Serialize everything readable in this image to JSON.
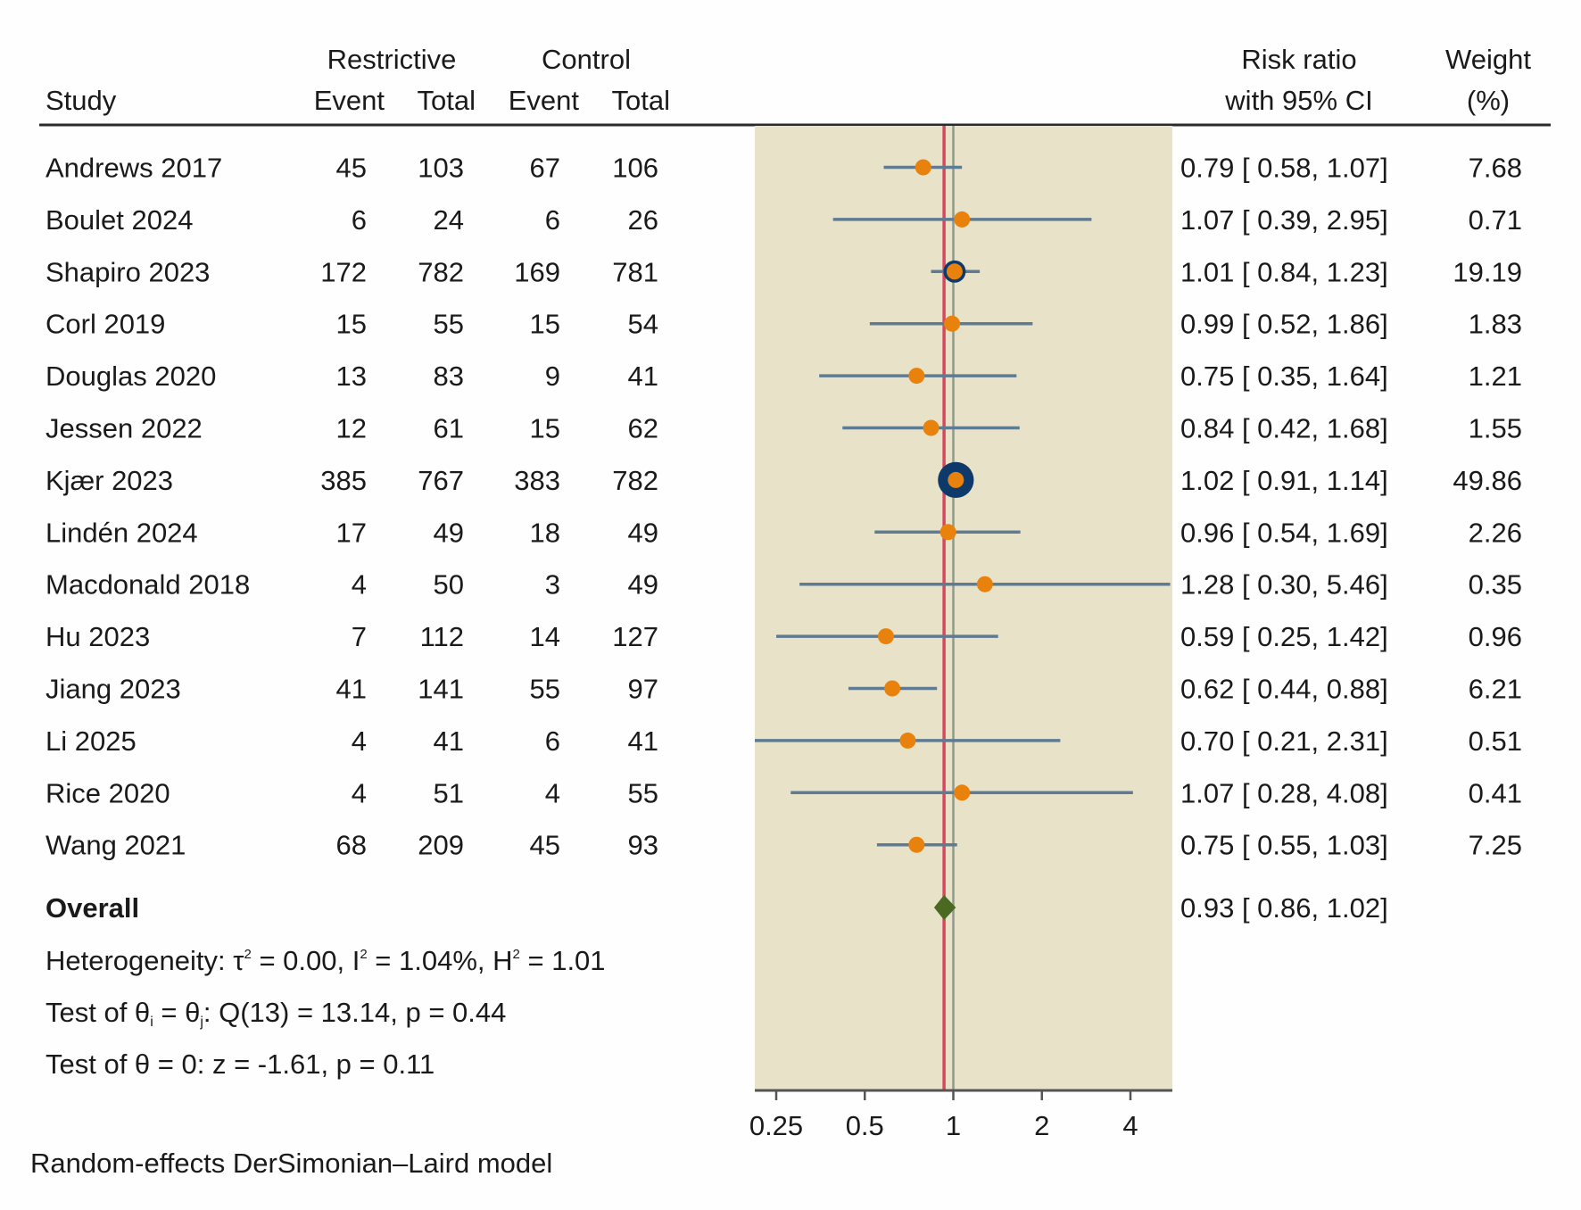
{
  "header": {
    "study": "Study",
    "group1": "Restrictive",
    "group2": "Control",
    "event1": "Event",
    "total1": "Total",
    "event2": "Event",
    "total2": "Total",
    "rr_line1": "Risk ratio",
    "rr_line2": "with 95% CI",
    "weight_line1": "Weight",
    "weight_line2": "(%)"
  },
  "colors": {
    "panel_bg": "#e8e3c8",
    "ci_line": "#5e7b93",
    "point": "#e8820c",
    "weight_ring": "#0e3a6b",
    "overall_line": "#d9475e",
    "null_line": "#8c9a90",
    "diamond": "#4a6a22"
  },
  "chart_data": {
    "type": "forest",
    "xscale": "log2",
    "xticks": [
      "0.25",
      "0.5",
      "1",
      "2",
      "4"
    ],
    "xlim": [
      0.2,
      4.8
    ],
    "studies": [
      {
        "study": "Andrews 2017",
        "e1": "45",
        "n1": "103",
        "e2": "67",
        "n2": "106",
        "rr": 0.79,
        "lo": 0.58,
        "hi": 1.07,
        "ci_text": "0.79 [ 0.58,  1.07]",
        "weight": "7.68"
      },
      {
        "study": "Boulet 2024",
        "e1": "6",
        "n1": "24",
        "e2": "6",
        "n2": "26",
        "rr": 1.07,
        "lo": 0.39,
        "hi": 2.95,
        "ci_text": "1.07 [ 0.39,  2.95]",
        "weight": "0.71"
      },
      {
        "study": "Shapiro 2023",
        "e1": "172",
        "n1": "782",
        "e2": "169",
        "n2": "781",
        "rr": 1.01,
        "lo": 0.84,
        "hi": 1.23,
        "ci_text": "1.01 [ 0.84,  1.23]",
        "weight": "19.19"
      },
      {
        "study": "Corl 2019",
        "e1": "15",
        "n1": "55",
        "e2": "15",
        "n2": "54",
        "rr": 0.99,
        "lo": 0.52,
        "hi": 1.86,
        "ci_text": "0.99 [ 0.52,  1.86]",
        "weight": "1.83"
      },
      {
        "study": "Douglas 2020",
        "e1": "13",
        "n1": "83",
        "e2": "9",
        "n2": "41",
        "rr": 0.75,
        "lo": 0.35,
        "hi": 1.64,
        "ci_text": "0.75 [ 0.35,  1.64]",
        "weight": "1.21"
      },
      {
        "study": "Jessen 2022",
        "e1": "12",
        "n1": "61",
        "e2": "15",
        "n2": "62",
        "rr": 0.84,
        "lo": 0.42,
        "hi": 1.68,
        "ci_text": "0.84 [ 0.42,  1.68]",
        "weight": "1.55"
      },
      {
        "study": "Kjær 2023",
        "e1": "385",
        "n1": "767",
        "e2": "383",
        "n2": "782",
        "rr": 1.02,
        "lo": 0.91,
        "hi": 1.14,
        "ci_text": "1.02 [ 0.91,  1.14]",
        "weight": "49.86"
      },
      {
        "study": "Lindén 2024",
        "e1": "17",
        "n1": "49",
        "e2": "18",
        "n2": "49",
        "rr": 0.96,
        "lo": 0.54,
        "hi": 1.69,
        "ci_text": "0.96 [ 0.54,  1.69]",
        "weight": "2.26"
      },
      {
        "study": "Macdonald 2018",
        "e1": "4",
        "n1": "50",
        "e2": "3",
        "n2": "49",
        "rr": 1.28,
        "lo": 0.3,
        "hi": 5.46,
        "ci_text": "1.28 [ 0.30,  5.46]",
        "weight": "0.35"
      },
      {
        "study": "Hu 2023",
        "e1": "7",
        "n1": "112",
        "e2": "14",
        "n2": "127",
        "rr": 0.59,
        "lo": 0.25,
        "hi": 1.42,
        "ci_text": "0.59 [ 0.25,  1.42]",
        "weight": "0.96"
      },
      {
        "study": "Jiang 2023",
        "e1": "41",
        "n1": "141",
        "e2": "55",
        "n2": "97",
        "rr": 0.62,
        "lo": 0.44,
        "hi": 0.88,
        "ci_text": "0.62 [ 0.44,  0.88]",
        "weight": "6.21"
      },
      {
        "study": "Li 2025",
        "e1": "4",
        "n1": "41",
        "e2": "6",
        "n2": "41",
        "rr": 0.7,
        "lo": 0.21,
        "hi": 2.31,
        "ci_text": "0.70 [ 0.21,  2.31]",
        "weight": "0.51"
      },
      {
        "study": "Rice 2020",
        "e1": "4",
        "n1": "51",
        "e2": "4",
        "n2": "55",
        "rr": 1.07,
        "lo": 0.28,
        "hi": 4.08,
        "ci_text": "1.07 [ 0.28,  4.08]",
        "weight": "0.41"
      },
      {
        "study": "Wang 2021",
        "e1": "68",
        "n1": "209",
        "e2": "45",
        "n2": "93",
        "rr": 0.75,
        "lo": 0.55,
        "hi": 1.03,
        "ci_text": "0.75 [ 0.55,  1.03]",
        "weight": "7.25"
      }
    ],
    "overall": {
      "label": "Overall",
      "rr": 0.93,
      "lo": 0.86,
      "hi": 1.02,
      "ci_text": "0.93 [ 0.86,  1.02]"
    }
  },
  "stats": {
    "het_prefix": "Heterogeneity: τ",
    "het_tau": " = 0.00, I",
    "het_i": " = 1.04%, H",
    "het_h": " = 1.01",
    "sup2": "2",
    "q_prefix": "Test of θ",
    "q_i": "i",
    "q_mid": " = θ",
    "q_j": "j",
    "q_rest": ": Q(13) = 13.14, p = 0.44",
    "z_test": "Test of θ = 0: z = -1.61, p = 0.11"
  },
  "footnote": "Random-effects DerSimonian–Laird model"
}
